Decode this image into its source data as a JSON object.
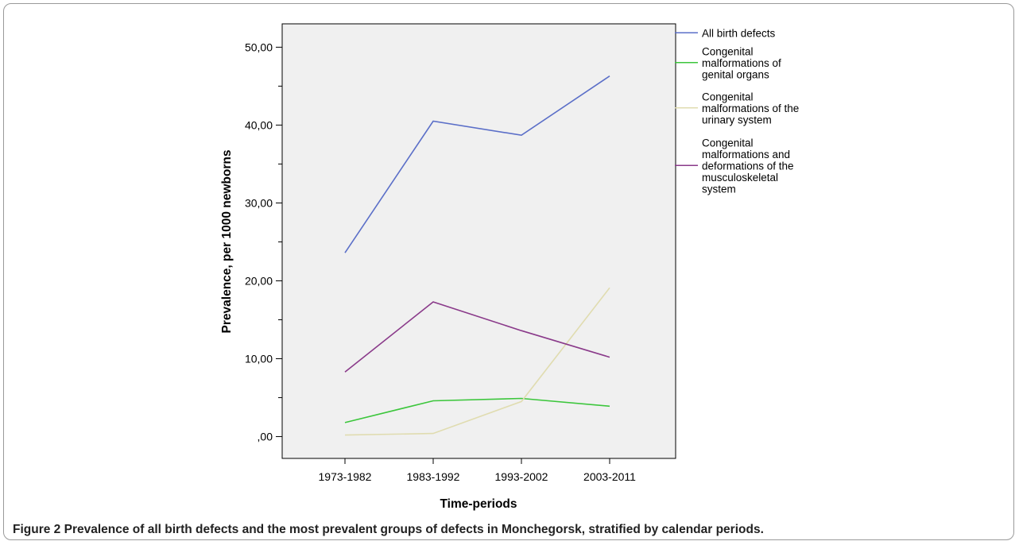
{
  "chart_data": {
    "type": "line",
    "categories": [
      "1973-1982",
      "1983-1992",
      "1993-2002",
      "2003-2011"
    ],
    "series": [
      {
        "name": "All birth defects",
        "values": [
          23.6,
          40.5,
          38.7,
          46.3
        ],
        "color": "#5b6fc8"
      },
      {
        "name": "Congenital malformations of genital organs",
        "values": [
          1.8,
          4.6,
          4.9,
          3.9
        ],
        "color": "#3cc63c"
      },
      {
        "name": "Congenital malformations of the urinary system",
        "values": [
          0.2,
          0.4,
          4.5,
          19.1
        ],
        "color": "#e0dcb0"
      },
      {
        "name": "Congenital malformations and deformations of the musculoskeletal system",
        "values": [
          8.3,
          17.3,
          13.6,
          10.2
        ],
        "color": "#8a3a8a"
      }
    ],
    "legend_lines": [
      [
        "All birth defects"
      ],
      [
        "Congenital",
        "malformations of",
        "genital organs"
      ],
      [
        "Congenital",
        "malformations of the",
        "urinary system"
      ],
      [
        "Congenital",
        "malformations and",
        "deformations of the",
        "musculoskeletal",
        "system"
      ]
    ],
    "yticks": [
      0,
      10,
      20,
      30,
      40,
      50
    ],
    "ytick_labels": [
      ",00",
      "10,00",
      "20,00",
      "30,00",
      "40,00",
      "50,00"
    ],
    "ylim": [
      -2.8,
      53
    ],
    "xlabel": "Time-periods",
    "ylabel": "Prevalence, per 1000 newborns",
    "legend_position": "right",
    "plot_background": "#f0f0f0"
  },
  "caption": {
    "lead": "Figure 2",
    "text": "Prevalence of all birth defects and the most prevalent groups of defects in Monchegorsk, stratified by calendar periods."
  }
}
